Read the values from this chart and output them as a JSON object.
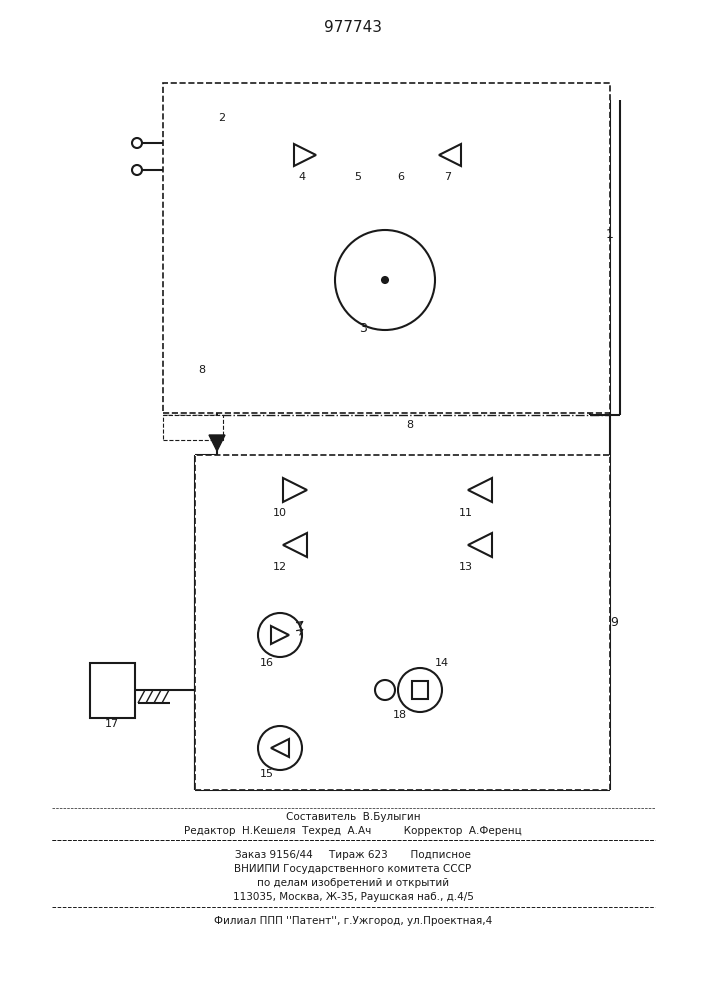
{
  "title": "977743",
  "lc": "#1a1a1a",
  "footer": [
    "Составитель  В.Булыгин",
    "Редактор  Н.Кешеля  Техред  А.Ач          Корректор  А.Ференц",
    "Заказ 9156/44     Тираж 623       Подписное",
    "ВНИИПИ Государственного комитета СССР",
    "по делам изобретений и открытий",
    "113035, Москва, Ж-35, Раушская наб., д.4/5",
    "Филиал ППП ''Патент'', г.Ужгород, ул.Проектная,4"
  ]
}
